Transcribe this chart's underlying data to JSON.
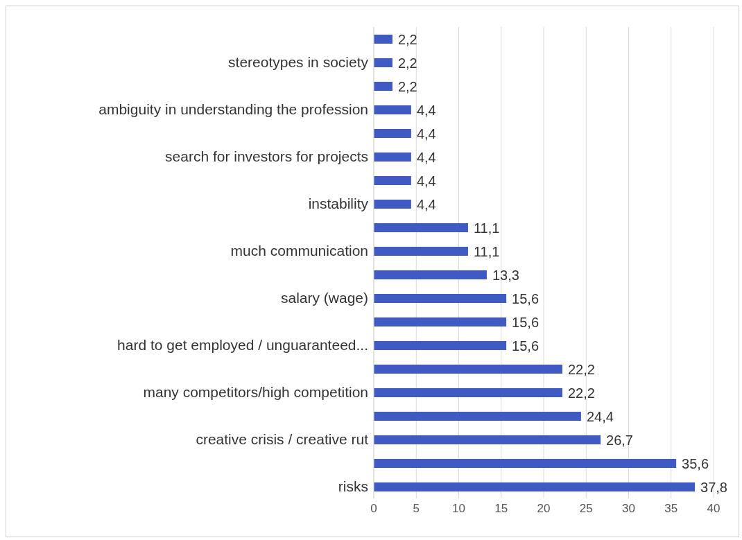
{
  "chart_data": {
    "type": "bar",
    "orientation": "horizontal",
    "categories": [
      null,
      "stereotypes in society",
      null,
      "ambiguity in understanding the profession",
      null,
      "search for investors for projects",
      null,
      "instability",
      null,
      "much communication",
      null,
      "salary (wage)",
      null,
      "hard to get employed / unguaranteed...",
      null,
      "many competitors/high competition",
      null,
      "creative crisis / creative rut",
      null,
      "risks"
    ],
    "values": [
      2.2,
      2.2,
      2.2,
      4.4,
      4.4,
      4.4,
      4.4,
      4.4,
      11.1,
      11.1,
      13.3,
      15.6,
      15.6,
      15.6,
      22.2,
      22.2,
      24.4,
      26.7,
      35.6,
      37.8
    ],
    "value_labels": [
      "2,2",
      "2,2",
      "2,2",
      "4,4",
      "4,4",
      "4,4",
      "4,4",
      "4,4",
      "11,1",
      "11,1",
      "13,3",
      "15,6",
      "15,6",
      "15,6",
      "22,2",
      "22,2",
      "24,4",
      "26,7",
      "35,6",
      "37,8"
    ],
    "color": "#3f5bc3",
    "xlim": [
      0,
      40
    ],
    "xticks": [
      0,
      5,
      10,
      15,
      20,
      25,
      30,
      35,
      40
    ],
    "grid": "x"
  }
}
